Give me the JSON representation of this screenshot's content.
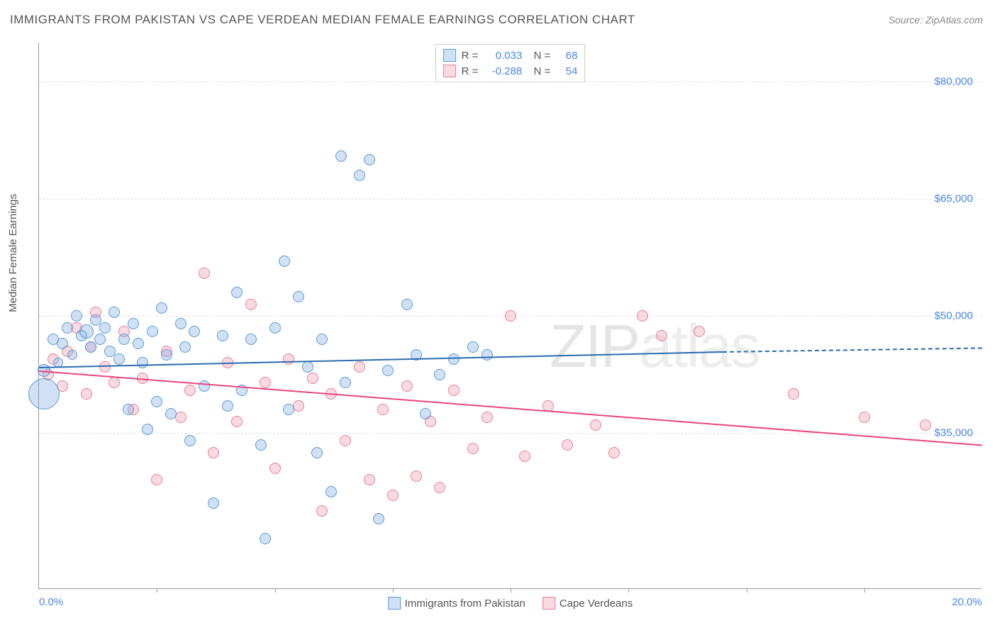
{
  "title": "IMMIGRANTS FROM PAKISTAN VS CAPE VERDEAN MEDIAN FEMALE EARNINGS CORRELATION CHART",
  "source": "Source: ZipAtlas.com",
  "ylabel": "Median Female Earnings",
  "watermark_bold": "ZIP",
  "watermark_thin": "atlas",
  "axes": {
    "xlim": [
      0,
      20
    ],
    "ylim": [
      15000,
      85000
    ],
    "yticks": [
      {
        "v": 35000,
        "label": "$35,000"
      },
      {
        "v": 50000,
        "label": "$50,000"
      },
      {
        "v": 65000,
        "label": "$65,000"
      },
      {
        "v": 80000,
        "label": "$80,000"
      }
    ],
    "xticks_left": {
      "v": 0,
      "label": "0.0%"
    },
    "xticks_right": {
      "v": 20,
      "label": "20.0%"
    },
    "xtick_marks": [
      2.5,
      5,
      7.5,
      10,
      12.5,
      15,
      17.5
    ]
  },
  "series": {
    "blue": {
      "name": "Immigrants from Pakistan",
      "fill": "rgba(120,170,230,0.35)",
      "stroke": "#5b9bd5",
      "line_color": "#2b6cb0",
      "R": "0.033",
      "N": "68",
      "trend": {
        "x1": 0,
        "y1": 43500,
        "x2": 14.5,
        "y2": 45500,
        "dash_x2": 20,
        "dash_y2": 46000
      },
      "points": [
        {
          "x": 0.1,
          "y": 43000,
          "r": 9
        },
        {
          "x": 0.1,
          "y": 40000,
          "r": 22
        },
        {
          "x": 0.3,
          "y": 47000,
          "r": 8
        },
        {
          "x": 0.4,
          "y": 44000,
          "r": 7
        },
        {
          "x": 0.5,
          "y": 46500,
          "r": 8
        },
        {
          "x": 0.6,
          "y": 48500,
          "r": 8
        },
        {
          "x": 0.7,
          "y": 45000,
          "r": 7
        },
        {
          "x": 0.8,
          "y": 50000,
          "r": 8
        },
        {
          "x": 0.9,
          "y": 47500,
          "r": 8
        },
        {
          "x": 1.0,
          "y": 48000,
          "r": 10
        },
        {
          "x": 1.1,
          "y": 46000,
          "r": 8
        },
        {
          "x": 1.2,
          "y": 49500,
          "r": 8
        },
        {
          "x": 1.3,
          "y": 47000,
          "r": 8
        },
        {
          "x": 1.4,
          "y": 48500,
          "r": 8
        },
        {
          "x": 1.5,
          "y": 45500,
          "r": 8
        },
        {
          "x": 1.6,
          "y": 50500,
          "r": 8
        },
        {
          "x": 1.7,
          "y": 44500,
          "r": 8
        },
        {
          "x": 1.8,
          "y": 47000,
          "r": 8
        },
        {
          "x": 1.9,
          "y": 38000,
          "r": 8
        },
        {
          "x": 2.0,
          "y": 49000,
          "r": 8
        },
        {
          "x": 2.1,
          "y": 46500,
          "r": 8
        },
        {
          "x": 2.2,
          "y": 44000,
          "r": 8
        },
        {
          "x": 2.3,
          "y": 35500,
          "r": 8
        },
        {
          "x": 2.4,
          "y": 48000,
          "r": 8
        },
        {
          "x": 2.5,
          "y": 39000,
          "r": 8
        },
        {
          "x": 2.6,
          "y": 51000,
          "r": 8
        },
        {
          "x": 2.7,
          "y": 45000,
          "r": 8
        },
        {
          "x": 2.8,
          "y": 37500,
          "r": 8
        },
        {
          "x": 3.0,
          "y": 49000,
          "r": 8
        },
        {
          "x": 3.1,
          "y": 46000,
          "r": 8
        },
        {
          "x": 3.2,
          "y": 34000,
          "r": 8
        },
        {
          "x": 3.3,
          "y": 48000,
          "r": 8
        },
        {
          "x": 3.5,
          "y": 41000,
          "r": 8
        },
        {
          "x": 3.7,
          "y": 26000,
          "r": 8
        },
        {
          "x": 3.9,
          "y": 47500,
          "r": 8
        },
        {
          "x": 4.0,
          "y": 38500,
          "r": 8
        },
        {
          "x": 4.2,
          "y": 53000,
          "r": 8
        },
        {
          "x": 4.3,
          "y": 40500,
          "r": 8
        },
        {
          "x": 4.5,
          "y": 47000,
          "r": 8
        },
        {
          "x": 4.7,
          "y": 33500,
          "r": 8
        },
        {
          "x": 4.8,
          "y": 21500,
          "r": 8
        },
        {
          "x": 5.0,
          "y": 48500,
          "r": 8
        },
        {
          "x": 5.2,
          "y": 57000,
          "r": 8
        },
        {
          "x": 5.3,
          "y": 38000,
          "r": 8
        },
        {
          "x": 5.5,
          "y": 52500,
          "r": 8
        },
        {
          "x": 5.7,
          "y": 43500,
          "r": 8
        },
        {
          "x": 5.9,
          "y": 32500,
          "r": 8
        },
        {
          "x": 6.0,
          "y": 47000,
          "r": 8
        },
        {
          "x": 6.2,
          "y": 27500,
          "r": 8
        },
        {
          "x": 6.4,
          "y": 70500,
          "r": 8
        },
        {
          "x": 6.5,
          "y": 41500,
          "r": 8
        },
        {
          "x": 6.8,
          "y": 68000,
          "r": 8
        },
        {
          "x": 7.0,
          "y": 70000,
          "r": 8
        },
        {
          "x": 7.2,
          "y": 24000,
          "r": 8
        },
        {
          "x": 7.4,
          "y": 43000,
          "r": 8
        },
        {
          "x": 7.8,
          "y": 51500,
          "r": 8
        },
        {
          "x": 8.0,
          "y": 45000,
          "r": 8
        },
        {
          "x": 8.2,
          "y": 37500,
          "r": 8
        },
        {
          "x": 8.5,
          "y": 42500,
          "r": 8
        },
        {
          "x": 8.8,
          "y": 44500,
          "r": 8
        },
        {
          "x": 9.2,
          "y": 46000,
          "r": 8
        },
        {
          "x": 9.5,
          "y": 45000,
          "r": 8
        }
      ]
    },
    "pink": {
      "name": "Cape Verdeans",
      "fill": "rgba(240,150,170,0.35)",
      "stroke": "#e57f9a",
      "line_color": "#e8467e",
      "R": "-0.288",
      "N": "54",
      "trend": {
        "x1": 0,
        "y1": 43000,
        "x2": 20,
        "y2": 33500
      },
      "points": [
        {
          "x": 0.2,
          "y": 42500,
          "r": 8
        },
        {
          "x": 0.3,
          "y": 44500,
          "r": 8
        },
        {
          "x": 0.5,
          "y": 41000,
          "r": 8
        },
        {
          "x": 0.6,
          "y": 45500,
          "r": 8
        },
        {
          "x": 0.8,
          "y": 48500,
          "r": 8
        },
        {
          "x": 1.0,
          "y": 40000,
          "r": 8
        },
        {
          "x": 1.1,
          "y": 46000,
          "r": 8
        },
        {
          "x": 1.2,
          "y": 50500,
          "r": 8
        },
        {
          "x": 1.4,
          "y": 43500,
          "r": 8
        },
        {
          "x": 1.6,
          "y": 41500,
          "r": 8
        },
        {
          "x": 1.8,
          "y": 48000,
          "r": 8
        },
        {
          "x": 2.0,
          "y": 38000,
          "r": 8
        },
        {
          "x": 2.2,
          "y": 42000,
          "r": 8
        },
        {
          "x": 2.5,
          "y": 29000,
          "r": 8
        },
        {
          "x": 2.7,
          "y": 45500,
          "r": 8
        },
        {
          "x": 3.0,
          "y": 37000,
          "r": 8
        },
        {
          "x": 3.2,
          "y": 40500,
          "r": 8
        },
        {
          "x": 3.5,
          "y": 55500,
          "r": 8
        },
        {
          "x": 3.7,
          "y": 32500,
          "r": 8
        },
        {
          "x": 4.0,
          "y": 44000,
          "r": 8
        },
        {
          "x": 4.2,
          "y": 36500,
          "r": 8
        },
        {
          "x": 4.5,
          "y": 51500,
          "r": 8
        },
        {
          "x": 4.8,
          "y": 41500,
          "r": 8
        },
        {
          "x": 5.0,
          "y": 30500,
          "r": 8
        },
        {
          "x": 5.3,
          "y": 44500,
          "r": 8
        },
        {
          "x": 5.5,
          "y": 38500,
          "r": 8
        },
        {
          "x": 5.8,
          "y": 42000,
          "r": 8
        },
        {
          "x": 6.0,
          "y": 25000,
          "r": 8
        },
        {
          "x": 6.2,
          "y": 40000,
          "r": 8
        },
        {
          "x": 6.5,
          "y": 34000,
          "r": 8
        },
        {
          "x": 6.8,
          "y": 43500,
          "r": 8
        },
        {
          "x": 7.0,
          "y": 29000,
          "r": 8
        },
        {
          "x": 7.3,
          "y": 38000,
          "r": 8
        },
        {
          "x": 7.5,
          "y": 27000,
          "r": 8
        },
        {
          "x": 7.8,
          "y": 41000,
          "r": 8
        },
        {
          "x": 8.0,
          "y": 29500,
          "r": 8
        },
        {
          "x": 8.3,
          "y": 36500,
          "r": 8
        },
        {
          "x": 8.5,
          "y": 28000,
          "r": 8
        },
        {
          "x": 8.8,
          "y": 40500,
          "r": 8
        },
        {
          "x": 9.2,
          "y": 33000,
          "r": 8
        },
        {
          "x": 9.5,
          "y": 37000,
          "r": 8
        },
        {
          "x": 10.0,
          "y": 50000,
          "r": 8
        },
        {
          "x": 10.3,
          "y": 32000,
          "r": 8
        },
        {
          "x": 10.8,
          "y": 38500,
          "r": 8
        },
        {
          "x": 11.2,
          "y": 33500,
          "r": 8
        },
        {
          "x": 11.8,
          "y": 36000,
          "r": 8
        },
        {
          "x": 12.2,
          "y": 32500,
          "r": 8
        },
        {
          "x": 12.8,
          "y": 50000,
          "r": 8
        },
        {
          "x": 13.2,
          "y": 47500,
          "r": 8
        },
        {
          "x": 14.0,
          "y": 48000,
          "r": 8
        },
        {
          "x": 16.0,
          "y": 40000,
          "r": 8
        },
        {
          "x": 17.5,
          "y": 37000,
          "r": 8
        },
        {
          "x": 18.8,
          "y": 36000,
          "r": 8
        }
      ]
    }
  }
}
